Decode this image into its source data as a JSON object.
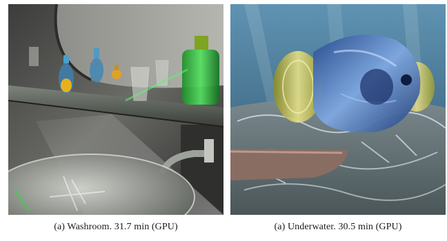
{
  "figure": {
    "panels": [
      {
        "id": "washroom",
        "caption": "(a) Washroom. 31.7 min (GPU)",
        "scene": "washroom render: glass sink, mirror, shelf with perfume bottles and glasses"
      },
      {
        "id": "underwater",
        "caption": "(a) Underwater. 30.5 min (GPU)",
        "scene": "underwater render: glass fish above rippling caustic seabed with a wooden boat"
      }
    ]
  }
}
